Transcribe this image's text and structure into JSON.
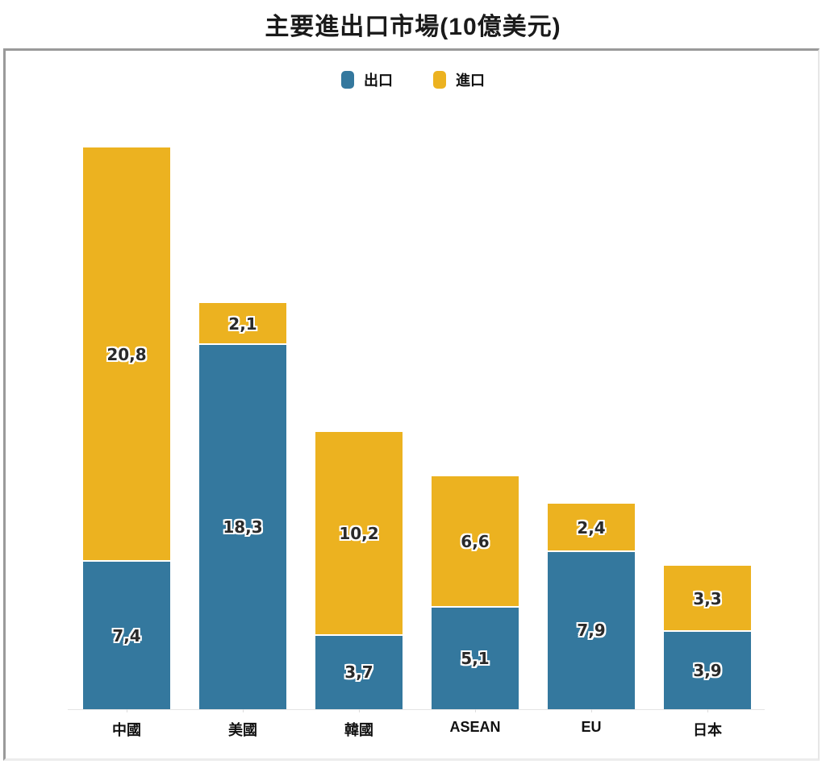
{
  "chart_data": {
    "type": "bar",
    "stacked": true,
    "title": "主要進出口市場(10億美元)",
    "xlabel": "",
    "ylabel": "",
    "categories": [
      "中國",
      "美國",
      "韓國",
      "ASEAN",
      "EU",
      "日本"
    ],
    "series": [
      {
        "name": "出口",
        "color": "#34789e",
        "values": [
          7.4,
          18.3,
          3.7,
          5.1,
          7.9,
          3.9
        ],
        "labels": [
          "7,4",
          "18,3",
          "3,7",
          "5,1",
          "7,9",
          "3,9"
        ]
      },
      {
        "name": "進口",
        "color": "#ecb220",
        "values": [
          20.8,
          2.1,
          10.2,
          6.6,
          2.4,
          3.3
        ],
        "labels": [
          "20,8",
          "2,1",
          "10,2",
          "6,6",
          "2,4",
          "3,3"
        ]
      }
    ],
    "legend_position": "top",
    "grid": false,
    "y_axis_visible": false,
    "ylim": [
      0,
      28.2
    ]
  },
  "legend": {
    "export_label": "出口",
    "import_label": "進口"
  },
  "colors": {
    "export": "#34789e",
    "import": "#ecb220"
  }
}
